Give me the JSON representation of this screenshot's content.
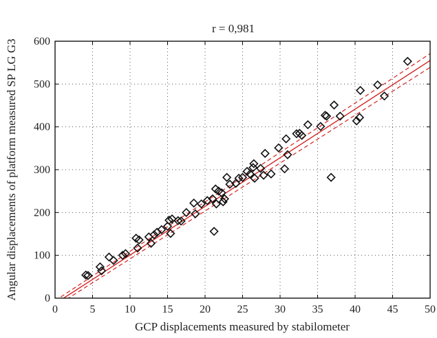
{
  "chart_data": {
    "type": "scatter",
    "title": "r = 0,981",
    "xlabel": "GCP displacements measured by stabilometer",
    "ylabel": "Angular displacements of platform measured SP LG G3",
    "xlim": [
      0,
      50
    ],
    "ylim": [
      0,
      600
    ],
    "x_ticks": [
      0,
      5,
      10,
      15,
      20,
      25,
      30,
      35,
      40,
      45,
      50
    ],
    "y_ticks": [
      0,
      100,
      200,
      300,
      400,
      500,
      600
    ],
    "grid": "dotted",
    "marker": "diamond",
    "colors": {
      "points": "#111111",
      "regression": "#d42020",
      "axes": "#000000",
      "grid": "#555555"
    },
    "regression": {
      "x": [
        0,
        50
      ],
      "y": [
        -13,
        555
      ]
    },
    "confidence_band": {
      "lower": {
        "x": [
          0,
          50
        ],
        "y": [
          -20,
          539
        ]
      },
      "upper": {
        "x": [
          0,
          50
        ],
        "y": [
          -6,
          571
        ]
      }
    },
    "points": [
      {
        "x": 4.1,
        "y": 54
      },
      {
        "x": 4.4,
        "y": 53
      },
      {
        "x": 6.0,
        "y": 73
      },
      {
        "x": 6.2,
        "y": 64
      },
      {
        "x": 7.2,
        "y": 96
      },
      {
        "x": 7.8,
        "y": 88
      },
      {
        "x": 9.0,
        "y": 100
      },
      {
        "x": 9.4,
        "y": 104
      },
      {
        "x": 10.8,
        "y": 140
      },
      {
        "x": 11.0,
        "y": 117
      },
      {
        "x": 11.2,
        "y": 136
      },
      {
        "x": 12.5,
        "y": 143
      },
      {
        "x": 12.8,
        "y": 128
      },
      {
        "x": 13.2,
        "y": 148
      },
      {
        "x": 13.6,
        "y": 154
      },
      {
        "x": 14.2,
        "y": 160
      },
      {
        "x": 15.0,
        "y": 168
      },
      {
        "x": 15.2,
        "y": 182
      },
      {
        "x": 15.4,
        "y": 151
      },
      {
        "x": 15.6,
        "y": 185
      },
      {
        "x": 16.4,
        "y": 181
      },
      {
        "x": 16.8,
        "y": 180
      },
      {
        "x": 17.5,
        "y": 200
      },
      {
        "x": 18.5,
        "y": 222
      },
      {
        "x": 18.7,
        "y": 197
      },
      {
        "x": 19.5,
        "y": 220
      },
      {
        "x": 20.3,
        "y": 228
      },
      {
        "x": 21.0,
        "y": 232
      },
      {
        "x": 21.2,
        "y": 156
      },
      {
        "x": 21.4,
        "y": 255
      },
      {
        "x": 21.5,
        "y": 220
      },
      {
        "x": 21.8,
        "y": 250
      },
      {
        "x": 22.2,
        "y": 246
      },
      {
        "x": 22.4,
        "y": 225
      },
      {
        "x": 22.6,
        "y": 232
      },
      {
        "x": 22.9,
        "y": 282
      },
      {
        "x": 23.3,
        "y": 266
      },
      {
        "x": 24.1,
        "y": 268
      },
      {
        "x": 24.5,
        "y": 280
      },
      {
        "x": 25.0,
        "y": 282
      },
      {
        "x": 25.6,
        "y": 296
      },
      {
        "x": 26.0,
        "y": 290
      },
      {
        "x": 26.4,
        "y": 305
      },
      {
        "x": 26.5,
        "y": 314
      },
      {
        "x": 26.6,
        "y": 280
      },
      {
        "x": 27.4,
        "y": 303
      },
      {
        "x": 27.8,
        "y": 287
      },
      {
        "x": 28.0,
        "y": 338
      },
      {
        "x": 28.8,
        "y": 290
      },
      {
        "x": 29.8,
        "y": 351
      },
      {
        "x": 30.6,
        "y": 302
      },
      {
        "x": 30.8,
        "y": 372
      },
      {
        "x": 31.0,
        "y": 335
      },
      {
        "x": 32.2,
        "y": 384
      },
      {
        "x": 32.6,
        "y": 385
      },
      {
        "x": 32.9,
        "y": 380
      },
      {
        "x": 33.7,
        "y": 405
      },
      {
        "x": 35.4,
        "y": 401
      },
      {
        "x": 36.0,
        "y": 427
      },
      {
        "x": 36.2,
        "y": 425
      },
      {
        "x": 36.8,
        "y": 282
      },
      {
        "x": 37.2,
        "y": 451
      },
      {
        "x": 38.0,
        "y": 425
      },
      {
        "x": 40.2,
        "y": 414
      },
      {
        "x": 40.6,
        "y": 422
      },
      {
        "x": 40.7,
        "y": 485
      },
      {
        "x": 43.0,
        "y": 498
      },
      {
        "x": 43.9,
        "y": 472
      },
      {
        "x": 47.0,
        "y": 553
      }
    ]
  }
}
